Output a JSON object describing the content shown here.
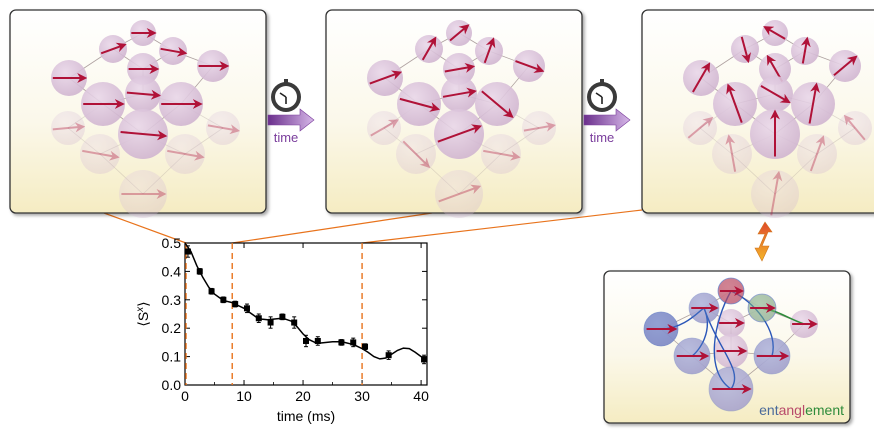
{
  "time_label": "time",
  "entanglement_word": {
    "part1": "ent",
    "part2": "angl",
    "part3": "ement"
  },
  "colors": {
    "spin_arrow": "#b01238",
    "site_fill": "#c8a2c8",
    "bond": "#9a8a8a",
    "panel_border": "#333333",
    "panel_bg_top": "#ffffff",
    "panel_bg_bottom": "#f7f0c9",
    "time_arrow": "#7a3d9c",
    "dashed_marker": "#e8731c",
    "entangle_blue": "#2a56b8",
    "entangle_green": "#2e8b3a",
    "entangle_orange": "#e0802a"
  },
  "icons": {
    "stopwatch": "stopwatch-icon",
    "double_arrow": "bidirectional-arrow-icon"
  },
  "chart_data": {
    "type": "scatter",
    "xlabel": "time (ms)",
    "ylabel": "⟨S",
    "ylabel_sup": "x",
    "ylabel_close": "⟩",
    "xlim": [
      0,
      41
    ],
    "ylim": [
      0,
      0.5
    ],
    "xticks": [
      "0",
      "10",
      "20",
      "30",
      "40"
    ],
    "yticks": [
      "0.0",
      "0.1",
      "0.2",
      "0.3",
      "0.4",
      "0.5"
    ],
    "points": [
      {
        "x": 0.5,
        "y": 0.47,
        "err": 0.02
      },
      {
        "x": 2.5,
        "y": 0.4,
        "err": 0.01
      },
      {
        "x": 4.5,
        "y": 0.33,
        "err": 0.01
      },
      {
        "x": 6.5,
        "y": 0.3,
        "err": 0.01
      },
      {
        "x": 8.5,
        "y": 0.285,
        "err": 0.01
      },
      {
        "x": 10.5,
        "y": 0.27,
        "err": 0.015
      },
      {
        "x": 12.5,
        "y": 0.235,
        "err": 0.015
      },
      {
        "x": 14.5,
        "y": 0.22,
        "err": 0.02
      },
      {
        "x": 16.5,
        "y": 0.24,
        "err": 0.01
      },
      {
        "x": 18.5,
        "y": 0.22,
        "err": 0.02
      },
      {
        "x": 20.5,
        "y": 0.155,
        "err": 0.02
      },
      {
        "x": 22.5,
        "y": 0.155,
        "err": 0.015
      },
      {
        "x": 26.5,
        "y": 0.15,
        "err": 0.01
      },
      {
        "x": 28.5,
        "y": 0.15,
        "err": 0.015
      },
      {
        "x": 30.5,
        "y": 0.135,
        "err": 0.01
      },
      {
        "x": 34.5,
        "y": 0.105,
        "err": 0.015
      },
      {
        "x": 40.5,
        "y": 0.09,
        "err": 0.015
      }
    ],
    "theory_curve": [
      [
        0,
        0.5
      ],
      [
        1,
        0.47
      ],
      [
        2,
        0.42
      ],
      [
        3,
        0.38
      ],
      [
        4,
        0.345
      ],
      [
        5,
        0.32
      ],
      [
        6,
        0.305
      ],
      [
        7,
        0.295
      ],
      [
        8,
        0.29
      ],
      [
        9,
        0.28
      ],
      [
        10,
        0.27
      ],
      [
        11,
        0.255
      ],
      [
        12,
        0.24
      ],
      [
        13,
        0.232
      ],
      [
        14,
        0.23
      ],
      [
        15,
        0.232
      ],
      [
        16,
        0.234
      ],
      [
        17,
        0.232
      ],
      [
        18,
        0.225
      ],
      [
        19,
        0.205
      ],
      [
        20,
        0.18
      ],
      [
        21,
        0.16
      ],
      [
        22,
        0.15
      ],
      [
        23,
        0.148
      ],
      [
        24,
        0.15
      ],
      [
        25,
        0.152
      ],
      [
        26,
        0.152
      ],
      [
        27,
        0.15
      ],
      [
        28,
        0.145
      ],
      [
        29,
        0.138
      ],
      [
        30,
        0.128
      ],
      [
        31,
        0.115
      ],
      [
        32,
        0.1
      ],
      [
        33,
        0.092
      ],
      [
        34,
        0.095
      ],
      [
        35,
        0.108
      ],
      [
        36,
        0.122
      ],
      [
        37,
        0.13
      ],
      [
        38,
        0.128
      ],
      [
        39,
        0.115
      ],
      [
        40,
        0.1
      ],
      [
        41,
        0.09
      ]
    ],
    "dashed_times": [
      0,
      8,
      30
    ]
  },
  "panels": [
    {
      "id": "panel-t0",
      "angles": [
        0,
        -20,
        10,
        0,
        0,
        0,
        5,
        0,
        0,
        -5,
        10,
        5,
        10,
        10,
        0
      ]
    },
    {
      "id": "panel-t1",
      "angles": [
        -40,
        -60,
        -70,
        -10,
        -20,
        20,
        -10,
        15,
        40,
        -30,
        -10,
        -20,
        45,
        10,
        -20
      ]
    },
    {
      "id": "panel-t2",
      "angles": [
        -150,
        75,
        -80,
        -120,
        -60,
        -40,
        30,
        -110,
        -80,
        -40,
        -130,
        -90,
        -100,
        -70,
        -80
      ]
    }
  ]
}
